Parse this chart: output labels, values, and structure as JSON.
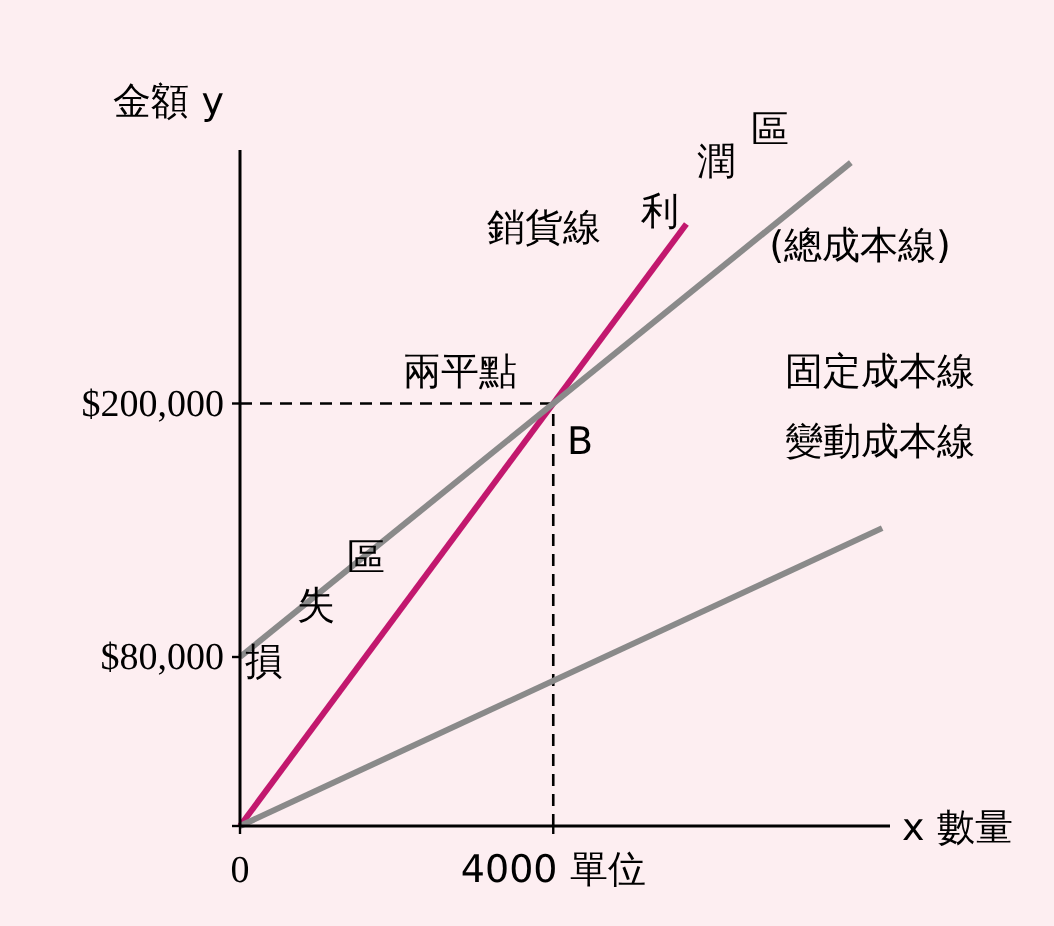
{
  "chart_data": {
    "type": "line",
    "xlabel": "x 數量",
    "ylabel": "金額 y",
    "xlim": [
      0,
      8300
    ],
    "ylim": [
      0,
      320000
    ],
    "xticks": [
      {
        "value": 0,
        "label": "0"
      },
      {
        "value": 4000,
        "label": "4000 單位"
      }
    ],
    "yticks": [
      {
        "value": 0,
        "label": null
      },
      {
        "value": 80000,
        "label": "$80,000"
      },
      {
        "value": 200000,
        "label": "$200,000"
      }
    ],
    "series": [
      {
        "color": "#c2186e",
        "x": [
          0,
          5700
        ],
        "values": [
          0,
          285000
        ]
      },
      {
        "color": "#8a8a8a",
        "x": [
          0,
          7800
        ],
        "values": [
          80000,
          314000
        ]
      },
      {
        "color": "#8a8a8a",
        "x": [
          0,
          8200
        ],
        "values": [
          0,
          141000
        ]
      }
    ],
    "ref_lines": [
      {
        "axis": "y",
        "value": 200000,
        "line_style": "dashed",
        "color": "#000000"
      },
      {
        "axis": "x",
        "value": 4000,
        "line_style": "dashed",
        "color": "#000000"
      }
    ],
    "annotations": [
      "銷貨線",
      "利",
      "潤",
      "區",
      "(總成本線)",
      "兩平點",
      "B",
      "固定成本線",
      "變動成本線",
      "損",
      "失",
      "區"
    ],
    "grid": false,
    "line_style": "solid",
    "marker": "none"
  }
}
